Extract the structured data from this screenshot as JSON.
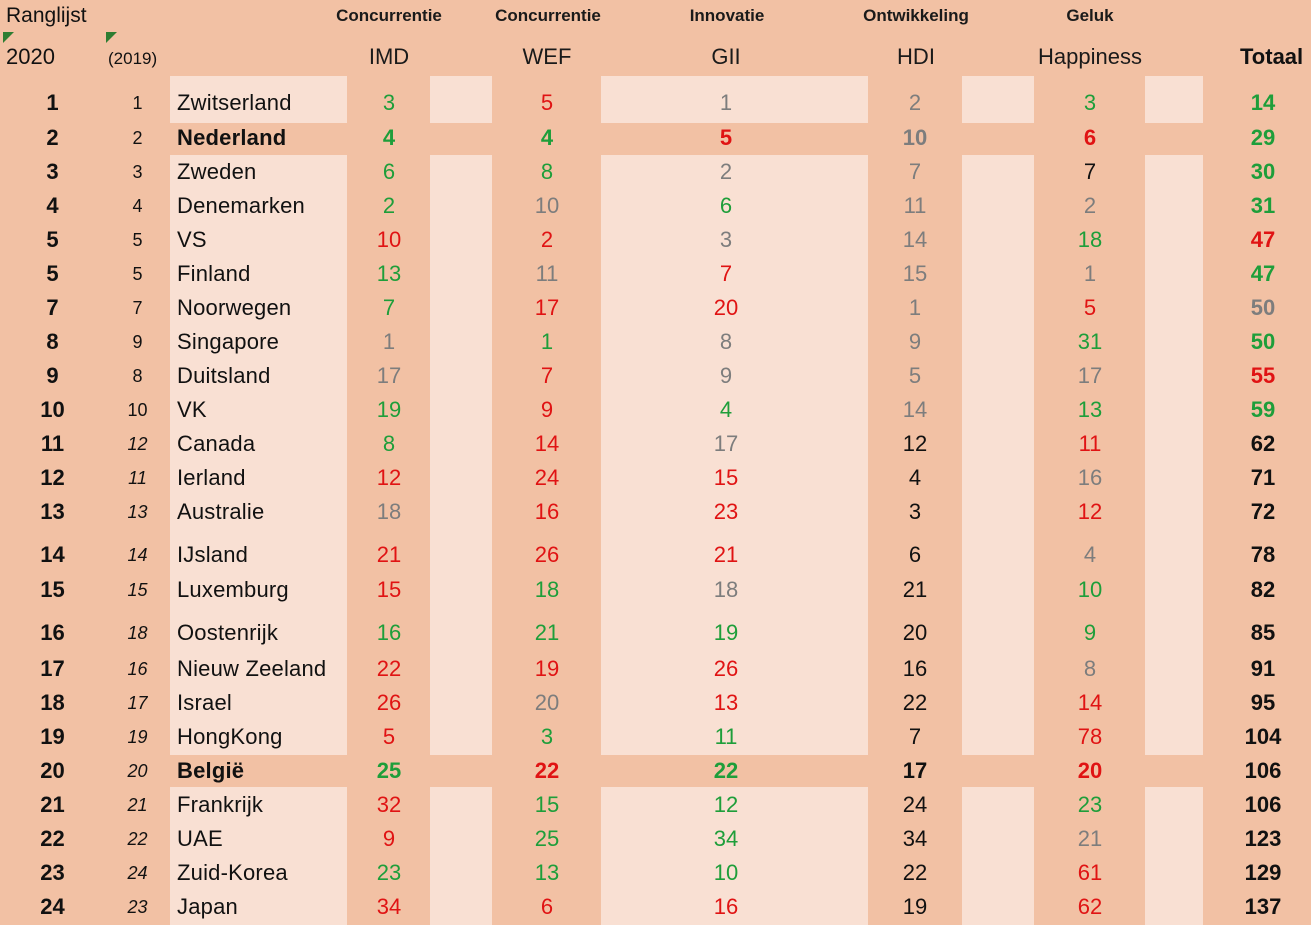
{
  "header": {
    "title": "Ranglijst",
    "year": "2020",
    "prev_year": "(2019)",
    "columns": [
      {
        "category": "Concurrentie",
        "name": "IMD"
      },
      {
        "category": "Concurrentie",
        "name": "WEF"
      },
      {
        "category": "Innovatie",
        "name": "GII"
      },
      {
        "category": "Ontwikkeling",
        "name": "HDI"
      },
      {
        "category": "Geluk",
        "name": "Happiness"
      }
    ],
    "total": "Totaal"
  },
  "colors": {
    "background": "#f2c1a4",
    "stripe": "#f9e0d3",
    "green": "#1e9e3a",
    "red": "#e01313",
    "grey": "#7d7d7d",
    "black": "#111111"
  },
  "rows": [
    {
      "rank": "1",
      "prev": "1",
      "country": "Zwitserland",
      "imd": "3",
      "wef": "5",
      "gii": "1",
      "hdi": "2",
      "happiness": "3",
      "total": "14"
    },
    {
      "rank": "2",
      "prev": "2",
      "country": "Nederland",
      "imd": "4",
      "wef": "4",
      "gii": "5",
      "hdi": "10",
      "happiness": "6",
      "total": "29"
    },
    {
      "rank": "3",
      "prev": "3",
      "country": "Zweden",
      "imd": "6",
      "wef": "8",
      "gii": "2",
      "hdi": "7",
      "happiness": "7",
      "total": "30"
    },
    {
      "rank": "4",
      "prev": "4",
      "country": "Denemarken",
      "imd": "2",
      "wef": "10",
      "gii": "6",
      "hdi": "11",
      "happiness": "2",
      "total": "31"
    },
    {
      "rank": "5",
      "prev": "5",
      "country": "VS",
      "imd": "10",
      "wef": "2",
      "gii": "3",
      "hdi": "14",
      "happiness": "18",
      "total": "47"
    },
    {
      "rank": "5",
      "prev": "5",
      "country": "Finland",
      "imd": "13",
      "wef": "11",
      "gii": "7",
      "hdi": "15",
      "happiness": "1",
      "total": "47"
    },
    {
      "rank": "7",
      "prev": "7",
      "country": "Noorwegen",
      "imd": "7",
      "wef": "17",
      "gii": "20",
      "hdi": "1",
      "happiness": "5",
      "total": "50"
    },
    {
      "rank": "8",
      "prev": "9",
      "country": "Singapore",
      "imd": "1",
      "wef": "1",
      "gii": "8",
      "hdi": "9",
      "happiness": "31",
      "total": "50"
    },
    {
      "rank": "9",
      "prev": "8",
      "country": "Duitsland",
      "imd": "17",
      "wef": "7",
      "gii": "9",
      "hdi": "5",
      "happiness": "17",
      "total": "55"
    },
    {
      "rank": "10",
      "prev": "10",
      "country": "VK",
      "imd": "19",
      "wef": "9",
      "gii": "4",
      "hdi": "14",
      "happiness": "13",
      "total": "59"
    },
    {
      "rank": "11",
      "prev": "12",
      "country": "Canada",
      "imd": "8",
      "wef": "14",
      "gii": "17",
      "hdi": "12",
      "happiness": "11",
      "total": "62"
    },
    {
      "rank": "12",
      "prev": "11",
      "country": "Ierland",
      "imd": "12",
      "wef": "24",
      "gii": "15",
      "hdi": "4",
      "happiness": "16",
      "total": "71"
    },
    {
      "rank": "13",
      "prev": "13",
      "country": "Australie",
      "imd": "18",
      "wef": "16",
      "gii": "23",
      "hdi": "3",
      "happiness": "12",
      "total": "72"
    },
    {
      "rank": "14",
      "prev": "14",
      "country": "IJsland",
      "imd": "21",
      "wef": "26",
      "gii": "21",
      "hdi": "6",
      "happiness": "4",
      "total": "78"
    },
    {
      "rank": "15",
      "prev": "15",
      "country": "Luxemburg",
      "imd": "15",
      "wef": "18",
      "gii": "18",
      "hdi": "21",
      "happiness": "10",
      "total": "82"
    },
    {
      "rank": "16",
      "prev": "18",
      "country": "Oostenrijk",
      "imd": "16",
      "wef": "21",
      "gii": "19",
      "hdi": "20",
      "happiness": "9",
      "total": "85"
    },
    {
      "rank": "17",
      "prev": "16",
      "country": "Nieuw Zeeland",
      "imd": "22",
      "wef": "19",
      "gii": "26",
      "hdi": "16",
      "happiness": "8",
      "total": "91"
    },
    {
      "rank": "18",
      "prev": "17",
      "country": "Israel",
      "imd": "26",
      "wef": "20",
      "gii": "13",
      "hdi": "22",
      "happiness": "14",
      "total": "95"
    },
    {
      "rank": "19",
      "prev": "19",
      "country": "HongKong",
      "imd": "5",
      "wef": "3",
      "gii": "11",
      "hdi": "7",
      "happiness": "78",
      "total": "104"
    },
    {
      "rank": "20",
      "prev": "20",
      "country": "België",
      "imd": "25",
      "wef": "22",
      "gii": "22",
      "hdi": "17",
      "happiness": "20",
      "total": "106"
    },
    {
      "rank": "21",
      "prev": "21",
      "country": "Frankrijk",
      "imd": "32",
      "wef": "15",
      "gii": "12",
      "hdi": "24",
      "happiness": "23",
      "total": "106"
    },
    {
      "rank": "22",
      "prev": "22",
      "country": "UAE",
      "imd": "9",
      "wef": "25",
      "gii": "34",
      "hdi": "34",
      "happiness": "21",
      "total": "123"
    },
    {
      "rank": "23",
      "prev": "24",
      "country": "Zuid-Korea",
      "imd": "23",
      "wef": "13",
      "gii": "10",
      "hdi": "22",
      "happiness": "61",
      "total": "129"
    },
    {
      "rank": "24",
      "prev": "23",
      "country": "Japan",
      "imd": "34",
      "wef": "6",
      "gii": "16",
      "hdi": "19",
      "happiness": "62",
      "total": "137"
    }
  ]
}
